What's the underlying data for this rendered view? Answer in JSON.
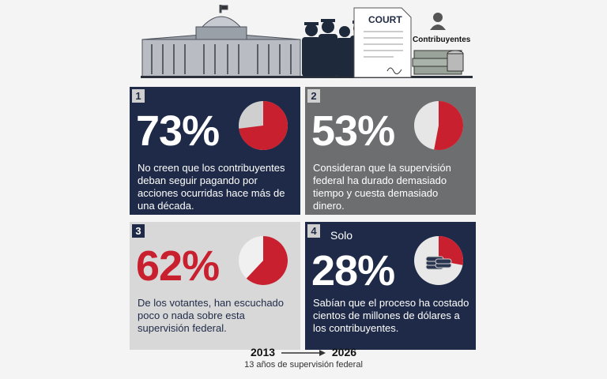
{
  "header": {
    "court_label": "COURT",
    "contribuyentes_label": "Contribuyentes",
    "icons": [
      "capitol-building-icon",
      "police-officers-icon",
      "court-document-icon",
      "person-icon",
      "money-stack-icon"
    ]
  },
  "panels": [
    {
      "number": "1",
      "percent": "73%",
      "pie_value": 73,
      "description": "No creen que los contribuyentes deban seguir pagando por acciones ocurridas hace más de una década."
    },
    {
      "number": "2",
      "percent": "53%",
      "pie_value": 53,
      "description": "Consideran que la supervisión federal ha durado demasiado tiempo y cuesta demasiado dinero."
    },
    {
      "number": "3",
      "percent": "62%",
      "pie_value": 62,
      "description": "De los votantes, han escuchado poco o nada sobre esta supervisión federal."
    },
    {
      "number": "4",
      "prefix": "Solo",
      "percent": "28%",
      "pie_value": 28,
      "description": "Sabían que el proceso ha costado cientos de millones de dólares a los contribuyentes."
    }
  ],
  "colors": {
    "navy": "#1e2a47",
    "red": "#c8202f",
    "gray": "#6d6e70",
    "light_gray": "#d8d8d8"
  },
  "footer": {
    "year_start": "2013",
    "year_end": "2026",
    "subtitle": "13 años de supervisión federal"
  }
}
